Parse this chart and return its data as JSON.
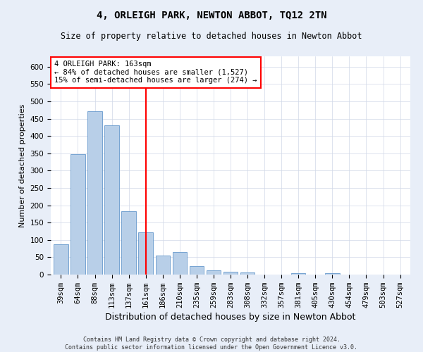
{
  "title": "4, ORLEIGH PARK, NEWTON ABBOT, TQ12 2TN",
  "subtitle": "Size of property relative to detached houses in Newton Abbot",
  "xlabel": "Distribution of detached houses by size in Newton Abbot",
  "ylabel": "Number of detached properties",
  "categories": [
    "39sqm",
    "64sqm",
    "88sqm",
    "113sqm",
    "137sqm",
    "161sqm",
    "186sqm",
    "210sqm",
    "235sqm",
    "259sqm",
    "283sqm",
    "308sqm",
    "332sqm",
    "357sqm",
    "381sqm",
    "405sqm",
    "430sqm",
    "454sqm",
    "479sqm",
    "503sqm",
    "527sqm"
  ],
  "values": [
    88,
    348,
    472,
    430,
    183,
    122,
    55,
    65,
    25,
    13,
    9,
    6,
    0,
    0,
    5,
    0,
    4,
    0,
    0,
    0,
    0
  ],
  "bar_color": "#b8cfe8",
  "bar_edge_color": "#6699cc",
  "vline_x_index": 5,
  "vline_color": "red",
  "annotation_text": "4 ORLEIGH PARK: 163sqm\n← 84% of detached houses are smaller (1,527)\n15% of semi-detached houses are larger (274) →",
  "annotation_box_color": "white",
  "annotation_box_edge_color": "red",
  "ylim": [
    0,
    630
  ],
  "yticks": [
    0,
    50,
    100,
    150,
    200,
    250,
    300,
    350,
    400,
    450,
    500,
    550,
    600
  ],
  "footer_line1": "Contains HM Land Registry data © Crown copyright and database right 2024.",
  "footer_line2": "Contains public sector information licensed under the Open Government Licence v3.0.",
  "bg_color": "#e8eef8",
  "plot_bg_color": "#ffffff",
  "grid_color": "#d0d8e8",
  "title_fontsize": 10,
  "subtitle_fontsize": 8.5,
  "ylabel_fontsize": 8,
  "xlabel_fontsize": 9,
  "tick_fontsize": 7.5,
  "annotation_fontsize": 7.5,
  "footer_fontsize": 6
}
